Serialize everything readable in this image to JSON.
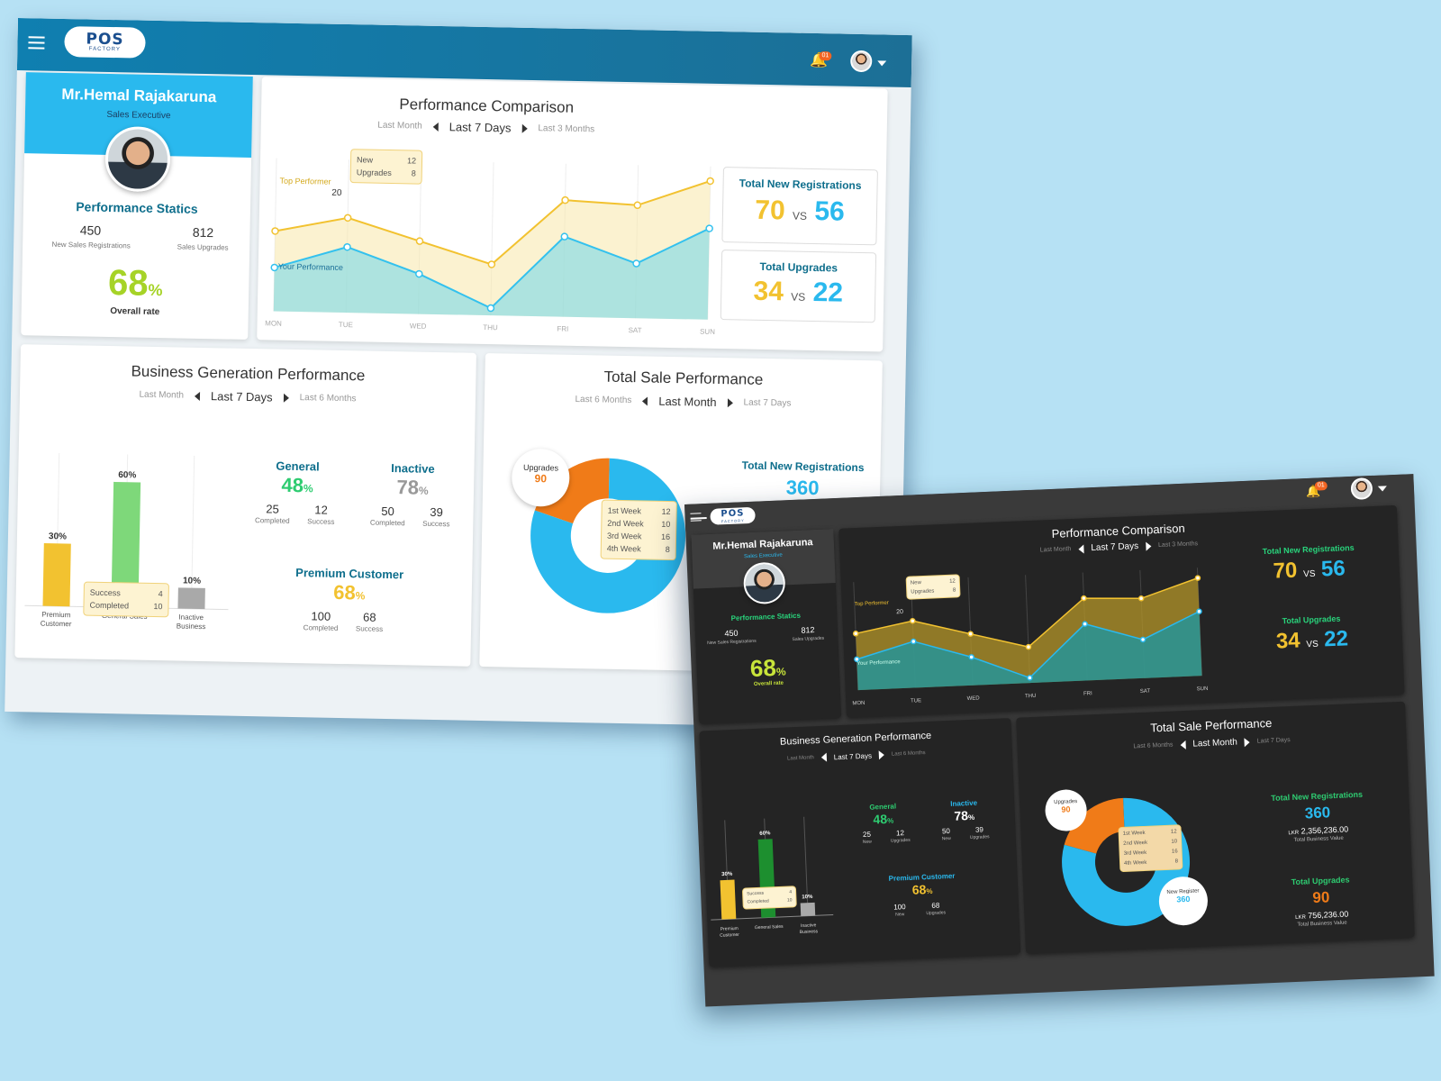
{
  "brand": {
    "logo": "POS",
    "logo_sub": "FACTORY",
    "notif_count": "01"
  },
  "profile": {
    "name": "Mr.Hemal Rajakaruna",
    "role": "Sales Executive",
    "stats_title": "Performance Statics",
    "new_reg": "450",
    "new_reg_label": "New Sales Registrations",
    "upgrades": "812",
    "upgrades_label": "Sales Upgrades",
    "rate": "68",
    "rate_unit": "%",
    "rate_label": "Overall rate"
  },
  "comparison": {
    "title": "Performance Comparison",
    "period_prev": "Last  Month",
    "period_active": "Last 7 Days",
    "period_next": "Last 3 Months",
    "top_label": "Top Performer",
    "your_label": "Your Performance",
    "point_label": "20",
    "tooltip": {
      "new_label": "New",
      "new_value": "12",
      "up_label": "Upgrades",
      "up_value": "8"
    }
  },
  "totals": {
    "reg_title": "Total New Registrations",
    "reg_a": "70",
    "reg_vs": "VS",
    "reg_b": "56",
    "up_title": "Total Upgrades",
    "up_a": "34",
    "up_vs": "VS",
    "up_b": "22"
  },
  "business": {
    "title": "Business Generation Performance",
    "period_prev": "Last  Month",
    "period_active": "Last 7 Days",
    "period_next": "Last 6 Months",
    "general_title": "General",
    "general_pct": "48",
    "general_a": "25",
    "general_a_label": "Completed",
    "general_b": "12",
    "general_b_label": "Success",
    "inactive_title": "Inactive",
    "inactive_pct": "78",
    "inactive_a": "50",
    "inactive_a_label": "Completed",
    "inactive_b": "39",
    "inactive_b_label": "Success",
    "premium_title": "Premium Customer",
    "premium_pct": "68",
    "premium_a": "100",
    "premium_a_label": "Completed",
    "premium_b": "68",
    "premium_b_label": "Success",
    "pct": "%",
    "tooltip": {
      "s_label": "Success",
      "s_value": "4",
      "c_label": "Completed",
      "c_value": "10"
    }
  },
  "business_dark": {
    "general_a_label": "New",
    "general_b_label": "Upgrades",
    "inactive_a_label": "New",
    "inactive_b_label": "Upgrades",
    "premium_a_label": "New",
    "premium_b_label": "Upgrades"
  },
  "sale": {
    "title": "Total Sale Performance",
    "period_prev": "Last 6 Months",
    "period_active": "Last Month",
    "period_next": "Last 7 Days",
    "reg_title": "Total New Registrations",
    "reg_value": "360",
    "reg_amount_cur": "LKR",
    "reg_amount": "2,356,236.00",
    "reg_amount_label": "Total Business Value",
    "up_title": "Total Upgrades",
    "up_value": "90",
    "up_amount_cur": "LKR",
    "up_amount": "756,236.00",
    "up_amount_label": "Total Business Value",
    "bubble_up_label": "Upgrades",
    "bubble_up_value": "90",
    "bubble_new_label": "New Register",
    "bubble_new_value": "360",
    "weeks": [
      {
        "w": "1st Week",
        "v": "12"
      },
      {
        "w": "2nd Week",
        "v": "10"
      },
      {
        "w": "3rd Week",
        "v": "16"
      },
      {
        "w": "4th Week",
        "v": "8"
      }
    ]
  },
  "chart_data": [
    {
      "type": "line",
      "title": "Performance Comparison",
      "x": [
        "MON",
        "TUE",
        "WED",
        "THU",
        "FRI",
        "SAT",
        "SUN"
      ],
      "series": [
        {
          "name": "Top Performer",
          "values": [
            16,
            20,
            14,
            8,
            26,
            25,
            32
          ]
        },
        {
          "name": "Your Performance",
          "values": [
            6,
            12,
            5,
            -4,
            16,
            9,
            19
          ]
        }
      ],
      "ylim": [
        -6,
        36
      ]
    },
    {
      "type": "bar",
      "title": "Business Generation Performance",
      "categories": [
        "Premium Customer",
        "General Sales",
        "Inactive Business"
      ],
      "values": [
        30,
        60,
        10
      ],
      "value_labels": [
        "30%",
        "60%",
        "10%"
      ]
    },
    {
      "type": "pie",
      "title": "Total Sale Performance",
      "categories": [
        "Upgrades",
        "New Register"
      ],
      "values": [
        90,
        360
      ]
    }
  ],
  "colors": {
    "accent": "#2ab9ee",
    "yellow": "#f2c230",
    "green": "#2ecc71",
    "orange": "#f07b18"
  }
}
